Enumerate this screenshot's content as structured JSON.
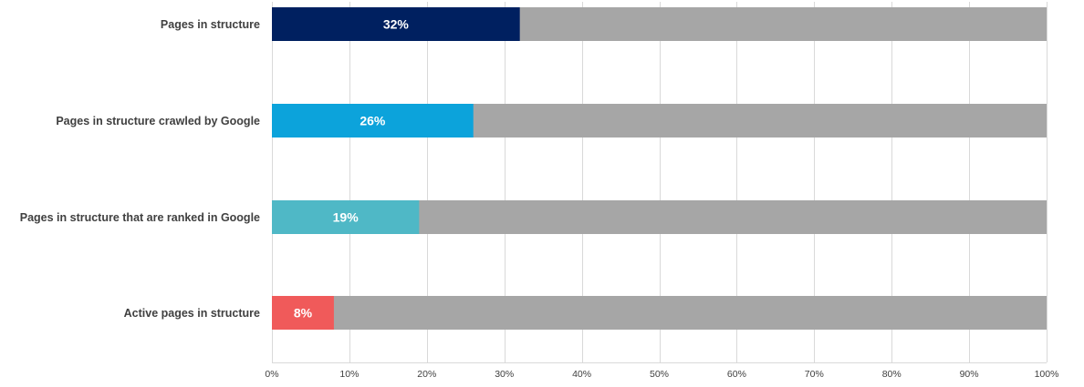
{
  "chart_data": {
    "type": "bar",
    "orientation": "horizontal",
    "stacked_remainder": true,
    "categories": [
      "Pages in structure",
      "Pages in structure crawled by Google",
      "Pages in structure that are ranked in Google",
      "Active pages in structure"
    ],
    "values": [
      32,
      26,
      19,
      8
    ],
    "data_labels": [
      "32%",
      "26%",
      "19%",
      "8%"
    ],
    "bar_colors": [
      "#002060",
      "#0ca3db",
      "#4fb8c6",
      "#f05a5a"
    ],
    "remainder_color": "#a6a6a6",
    "xlim": [
      0,
      100
    ],
    "x_ticks": [
      0,
      10,
      20,
      30,
      40,
      50,
      60,
      70,
      80,
      90,
      100
    ],
    "x_tick_labels": [
      "0%",
      "10%",
      "20%",
      "30%",
      "40%",
      "50%",
      "60%",
      "70%",
      "80%",
      "90%",
      "100%"
    ],
    "grid": true,
    "legend": "none",
    "title": "",
    "xlabel": "",
    "ylabel": ""
  }
}
